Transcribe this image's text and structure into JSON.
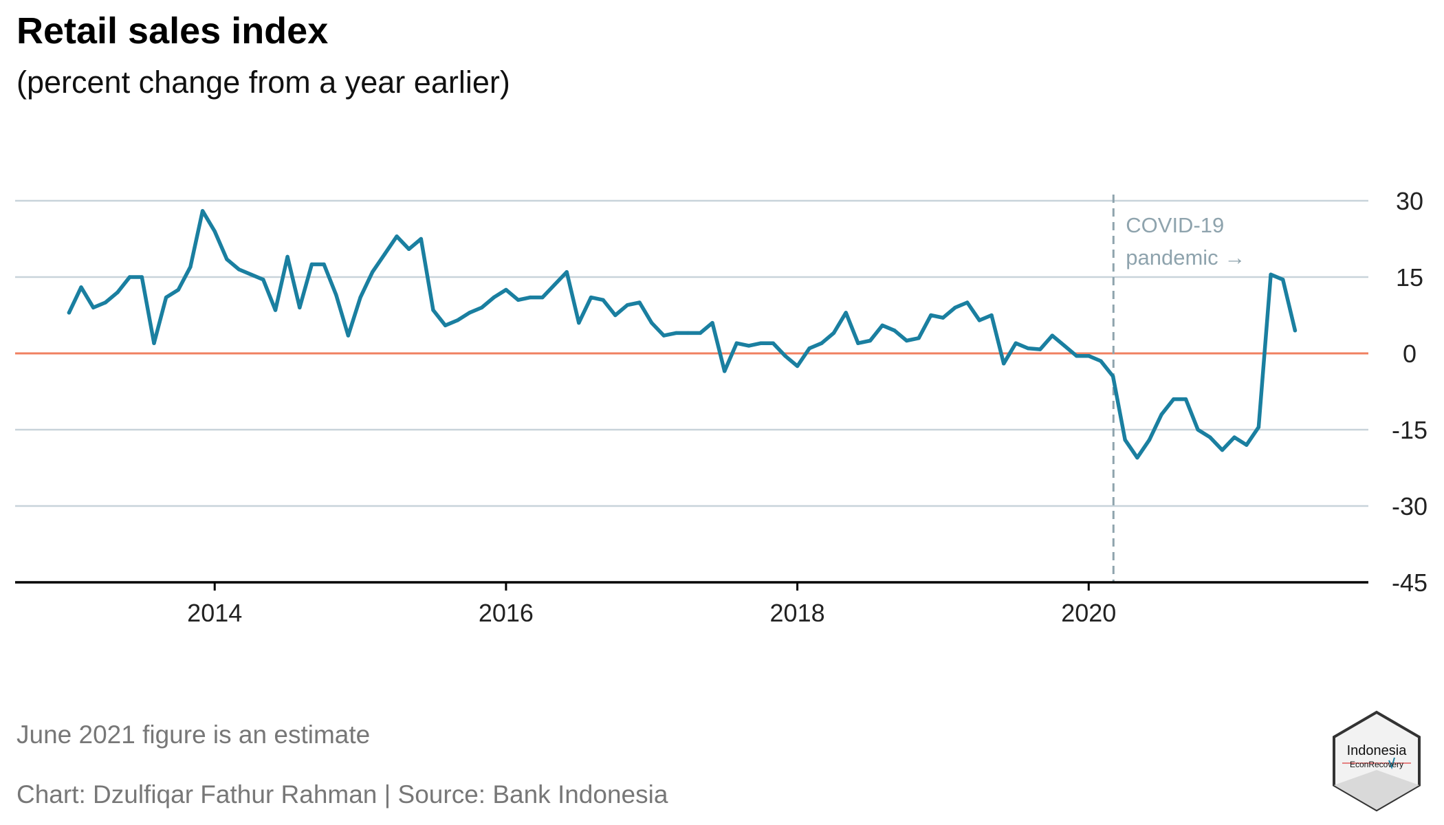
{
  "title": "Retail sales index",
  "subtitle": "(percent change from a year earlier)",
  "note": "June 2021 figure is an estimate",
  "credit": "Chart: Dzulfiqar Fathur Rahman | Source: Bank Indonesia",
  "logo": {
    "line1": "Indonesia",
    "line2": "EconRecovery"
  },
  "annotation": {
    "line1": "COVID-19",
    "line2": "pandemic →",
    "x": 2020.17
  },
  "colors": {
    "line": "#1a7fa0",
    "zero": "#f08060",
    "grid": "#c8d3da",
    "axis": "#000000",
    "annotation": "#8ea3ad"
  },
  "chart_data": {
    "type": "line",
    "title": "Retail sales index",
    "subtitle": "(percent change from a year earlier)",
    "xlabel": "",
    "ylabel": "",
    "xlim": [
      2012.63,
      2021.92
    ],
    "ylim": [
      -45,
      30
    ],
    "xticks": [
      2014,
      2016,
      2018,
      2020
    ],
    "xtick_labels": [
      "2014",
      "2016",
      "2018",
      "2020"
    ],
    "yticks": [
      30,
      15,
      0,
      -15,
      -30,
      -45
    ],
    "ytick_labels": [
      "30",
      "15",
      "0",
      "-15",
      "-30",
      "-45"
    ],
    "grid": true,
    "reference_line": 0,
    "series": [
      {
        "x": [
          "2013-01",
          "2013-02",
          "2013-03",
          "2013-04",
          "2013-05",
          "2013-06",
          "2013-07",
          "2013-08",
          "2013-09",
          "2013-10",
          "2013-11",
          "2013-12",
          "2014-01",
          "2014-02",
          "2014-03",
          "2014-04",
          "2014-05",
          "2014-06",
          "2014-07",
          "2014-08",
          "2014-09",
          "2014-10",
          "2014-11",
          "2014-12",
          "2015-01",
          "2015-02",
          "2015-03",
          "2015-04",
          "2015-05",
          "2015-06",
          "2015-07",
          "2015-08",
          "2015-09",
          "2015-10",
          "2015-11",
          "2015-12",
          "2016-01",
          "2016-02",
          "2016-03",
          "2016-04",
          "2016-05",
          "2016-06",
          "2016-07",
          "2016-08",
          "2016-09",
          "2016-10",
          "2016-11",
          "2016-12",
          "2017-01",
          "2017-02",
          "2017-03",
          "2017-04",
          "2017-05",
          "2017-06",
          "2017-07",
          "2017-08",
          "2017-09",
          "2017-10",
          "2017-11",
          "2017-12",
          "2018-01",
          "2018-02",
          "2018-03",
          "2018-04",
          "2018-05",
          "2018-06",
          "2018-07",
          "2018-08",
          "2018-09",
          "2018-10",
          "2018-11",
          "2018-12",
          "2019-01",
          "2019-02",
          "2019-03",
          "2019-04",
          "2019-05",
          "2019-06",
          "2019-07",
          "2019-08",
          "2019-09",
          "2019-10",
          "2019-11",
          "2019-12",
          "2020-01",
          "2020-02",
          "2020-03",
          "2020-04",
          "2020-05",
          "2020-06",
          "2020-07",
          "2020-08",
          "2020-09",
          "2020-10",
          "2020-11",
          "2020-12",
          "2021-01",
          "2021-02",
          "2021-03",
          "2021-04",
          "2021-05",
          "2021-06"
        ],
        "y": [
          8,
          13,
          9,
          10,
          12,
          15,
          15,
          2,
          11,
          12.5,
          17,
          28,
          24,
          18.5,
          16.5,
          15.5,
          14.5,
          8.5,
          19,
          9,
          17.5,
          17.5,
          11.5,
          3.5,
          11,
          16,
          19.5,
          23,
          20.5,
          22.5,
          8.5,
          5.5,
          6.5,
          8,
          9,
          11,
          12.5,
          10.5,
          11,
          11,
          13.5,
          16,
          6,
          11,
          10.5,
          7.5,
          9.5,
          10,
          6,
          3.5,
          4,
          4,
          4,
          6,
          -3.5,
          2,
          1.5,
          2,
          2,
          -0.5,
          -2.5,
          1,
          2,
          4,
          8,
          2,
          2.5,
          5.5,
          4.5,
          2.5,
          3,
          7.5,
          7,
          9,
          10,
          6.5,
          7.5,
          -2,
          2,
          1,
          0.8,
          3.5,
          1.5,
          -0.5,
          -0.5,
          -1.5,
          -4.5,
          -17,
          -20.5,
          -17,
          -12,
          -9,
          -9,
          -15,
          -16.5,
          -19,
          -16.5,
          -18,
          -14.5,
          15.5,
          14.5,
          4.5
        ]
      }
    ]
  }
}
